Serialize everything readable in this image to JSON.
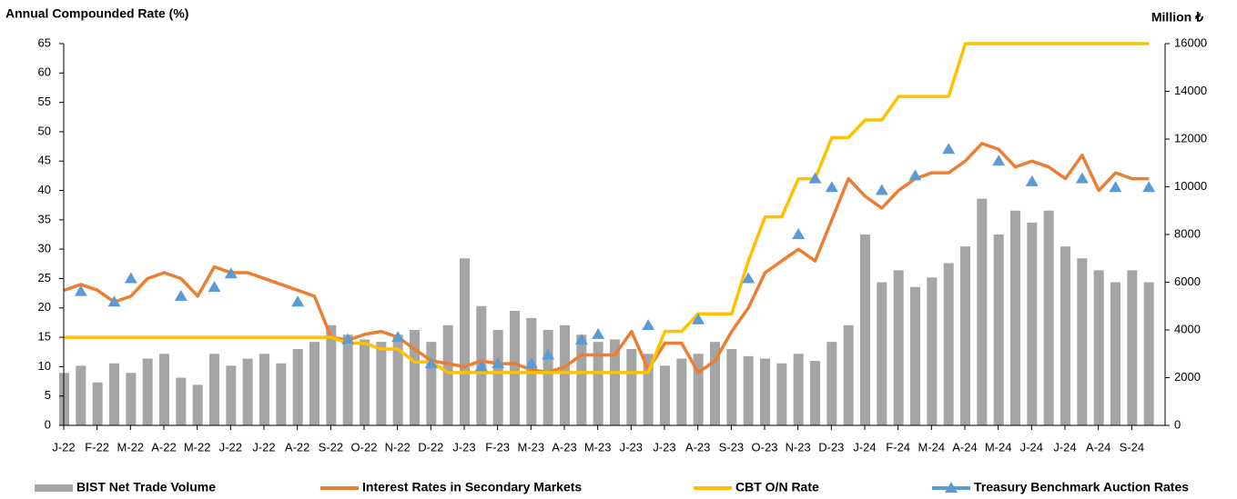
{
  "chart_data": {
    "type": "combo",
    "ylabel": "Annual Compounded Rate (%)",
    "y2label": "Million ₺",
    "categories": [
      "J-22",
      null,
      "F-22",
      null,
      "M-22",
      null,
      "A-22",
      null,
      "M-22",
      null,
      "J-22",
      null,
      "J-22",
      null,
      "A-22",
      null,
      "S-22",
      null,
      "O-22",
      null,
      "N-22",
      null,
      "D-22",
      null,
      "J-23",
      null,
      "F-23",
      null,
      "M-23",
      null,
      "A-23",
      null,
      "M-23",
      null,
      "J-23",
      null,
      "J-23",
      null,
      "A-23",
      null,
      "S-23",
      null,
      "O-23",
      null,
      "N-23",
      null,
      "D-23",
      null,
      "J-24",
      null,
      "F-24",
      null,
      "M-24",
      null,
      "A-24",
      null,
      "M-24",
      null,
      "J-24",
      null,
      "J-24",
      null,
      "A-24",
      null,
      "S-24",
      null
    ],
    "ylim": [
      0,
      65
    ],
    "yticks": [
      0,
      5,
      10,
      15,
      20,
      25,
      30,
      35,
      40,
      45,
      50,
      55,
      60,
      65
    ],
    "y2lim": [
      0,
      16000
    ],
    "y2ticks": [
      0,
      2000,
      4000,
      6000,
      8000,
      10000,
      12000,
      14000,
      16000
    ],
    "series": [
      {
        "name": "BIST Net Trade Volume",
        "type": "bar",
        "axis": "y2",
        "color": "#a5a5a5",
        "values": [
          2200,
          2500,
          1800,
          2600,
          2200,
          2800,
          3000,
          2000,
          1700,
          3000,
          2500,
          2800,
          3000,
          2600,
          3200,
          3500,
          4200,
          3800,
          3600,
          3500,
          3800,
          4000,
          3500,
          4200,
          7000,
          5000,
          4000,
          4800,
          4500,
          4000,
          4200,
          3800,
          3500,
          3600,
          3200,
          3000,
          2500,
          2800,
          3000,
          3500,
          3200,
          2900,
          2800,
          2600,
          3000,
          2700,
          3500,
          4200,
          8000,
          6000,
          6500,
          5800,
          6200,
          6800,
          7500,
          9500,
          8000,
          9000,
          8500,
          9000,
          7500,
          7000,
          6500,
          6000,
          6500,
          6000
        ]
      },
      {
        "name": "Interest Rates in Secondary Markets",
        "type": "line",
        "color": "#ed7d31",
        "values": [
          23,
          24,
          23,
          21,
          22,
          25,
          26,
          25,
          22,
          27,
          26,
          26,
          25,
          24,
          23,
          22,
          15,
          14.5,
          15.5,
          16,
          15,
          13,
          11,
          10.5,
          10,
          11,
          10.5,
          10.5,
          9.5,
          9,
          10,
          12,
          12,
          12,
          16,
          9.5,
          14,
          14,
          9,
          11,
          16,
          20,
          26,
          28,
          30,
          28,
          35,
          42,
          39,
          37,
          40,
          42,
          43,
          43,
          45,
          48,
          47,
          44,
          45,
          44,
          42,
          46,
          40,
          43,
          42,
          42
        ]
      },
      {
        "name": "CBT O/N Rate",
        "type": "line",
        "color": "#ffc000",
        "values": [
          15,
          15,
          15,
          15,
          15,
          15,
          15,
          15,
          15,
          15,
          15,
          15,
          15,
          15,
          15,
          15,
          15,
          14,
          14,
          13,
          13,
          10.8,
          10.8,
          9,
          9,
          9,
          9,
          9,
          9,
          9,
          9,
          9,
          9,
          9,
          9,
          9,
          16,
          16,
          19,
          19,
          19,
          28,
          35.5,
          35.5,
          42,
          42,
          49,
          49,
          52,
          52,
          56,
          56,
          56,
          56,
          65,
          65,
          65,
          65,
          65,
          65,
          65,
          65,
          65,
          65,
          65,
          65
        ]
      },
      {
        "name": "Treasury Benchmark Auction Rates",
        "type": "scatter",
        "color": "#5b9bd5",
        "values": [
          null,
          22.8,
          null,
          21,
          25,
          null,
          null,
          22,
          null,
          23.5,
          25.8,
          null,
          null,
          null,
          21,
          null,
          null,
          14.6,
          null,
          null,
          15,
          null,
          10.5,
          null,
          null,
          10,
          10.5,
          null,
          10.5,
          12,
          null,
          14.5,
          15.5,
          null,
          null,
          17,
          null,
          null,
          18,
          null,
          null,
          25,
          null,
          null,
          32.5,
          42,
          40.5,
          null,
          null,
          40,
          null,
          42.5,
          null,
          47,
          null,
          null,
          45,
          null,
          41.5,
          null,
          null,
          42,
          null,
          40.5,
          null,
          40.5
        ]
      }
    ]
  }
}
